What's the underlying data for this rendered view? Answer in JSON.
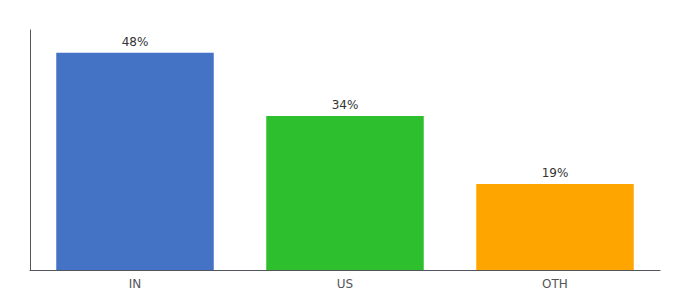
{
  "chart_data": {
    "type": "bar",
    "categories": [
      "IN",
      "US",
      "OTH"
    ],
    "values": [
      48,
      34,
      19
    ],
    "value_labels": [
      "48%",
      "34%",
      "19%"
    ],
    "colors": [
      "#4472C4",
      "#2EBF2E",
      "#FFA500"
    ],
    "ylim": [
      0,
      53
    ],
    "grid": false,
    "tick_labels": "x",
    "data_labels": true
  }
}
